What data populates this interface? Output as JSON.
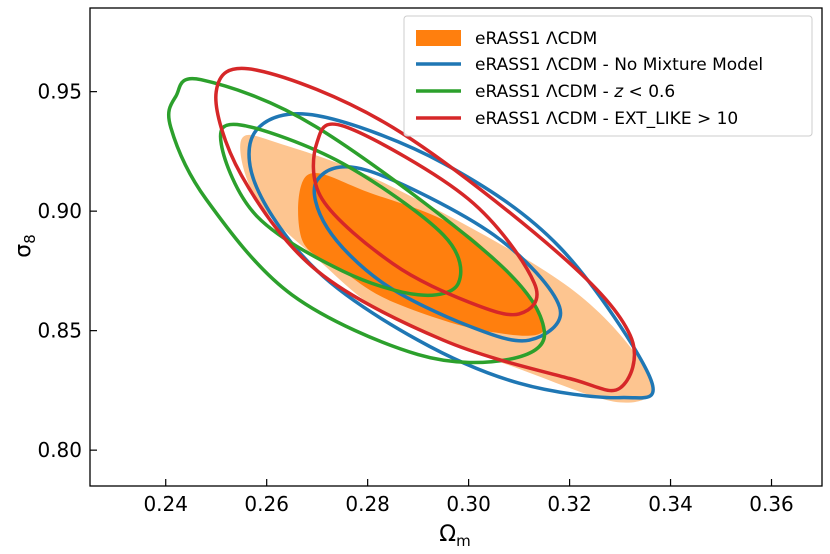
{
  "chart_data": {
    "type": "contour",
    "xlabel": "Ωm",
    "xlabel_main": "Ω",
    "xlabel_sub": "m",
    "ylabel": "σ8",
    "ylabel_main": "σ",
    "ylabel_sub": "8",
    "xlim": [
      0.225,
      0.37
    ],
    "ylim": [
      0.785,
      0.985
    ],
    "xticks": [
      0.24,
      0.26,
      0.28,
      0.3,
      0.32,
      0.34,
      0.36
    ],
    "xtick_labels": [
      "0.24",
      "0.26",
      "0.28",
      "0.30",
      "0.32",
      "0.34",
      "0.36"
    ],
    "yticks": [
      0.8,
      0.85,
      0.9,
      0.95
    ],
    "ytick_labels": [
      "0.80",
      "0.85",
      "0.90",
      "0.95"
    ],
    "grid": false,
    "legend_position": "top-right",
    "legend": [
      {
        "text": "eRASS1 ΛCDM",
        "color": "#ff7f0e",
        "style": "filled"
      },
      {
        "text": "eRASS1 ΛCDM - No Mixture Model",
        "color": "#1f77b4",
        "style": "line"
      },
      {
        "text": "eRASS1 ΛCDM - z < 0.6",
        "text_pre": "eRASS1 ΛCDM - ",
        "text_var": "z",
        "text_post": " < 0.6",
        "color": "#2ca02c",
        "style": "line"
      },
      {
        "text": "eRASS1 ΛCDM - EXT_LIKE > 10",
        "color": "#d62728",
        "style": "line"
      }
    ],
    "series": [
      {
        "name": "eRASS1 ΛCDM",
        "color": "#ff7f0e",
        "style": "filled",
        "contours": [
          {
            "level": "2σ",
            "color": "#fdc590",
            "points": [
              [
                0.255,
                0.93
              ],
              [
                0.263,
                0.928
              ],
              [
                0.285,
                0.91
              ],
              [
                0.32,
                0.868
              ],
              [
                0.336,
                0.83
              ],
              [
                0.33,
                0.82
              ],
              [
                0.31,
                0.834
              ],
              [
                0.285,
                0.855
              ],
              [
                0.27,
                0.88
              ],
              [
                0.258,
                0.905
              ]
            ]
          },
          {
            "level": "1σ",
            "color": "#ff7f0e",
            "points": [
              [
                0.268,
                0.915
              ],
              [
                0.28,
                0.908
              ],
              [
                0.3,
                0.89
              ],
              [
                0.315,
                0.852
              ],
              [
                0.303,
                0.85
              ],
              [
                0.285,
                0.862
              ],
              [
                0.275,
                0.875
              ],
              [
                0.267,
                0.888
              ]
            ]
          }
        ]
      },
      {
        "name": "eRASS1 ΛCDM - No Mixture Model",
        "color": "#1f77b4",
        "style": "line",
        "contours": [
          {
            "level": "2σ",
            "points": [
              [
                0.258,
                0.934
              ],
              [
                0.27,
                0.94
              ],
              [
                0.295,
                0.92
              ],
              [
                0.318,
                0.885
              ],
              [
                0.336,
                0.83
              ],
              [
                0.33,
                0.822
              ],
              [
                0.31,
                0.828
              ],
              [
                0.29,
                0.846
              ],
              [
                0.27,
                0.875
              ],
              [
                0.258,
                0.91
              ]
            ]
          },
          {
            "level": "1σ",
            "points": [
              [
                0.27,
                0.913
              ],
              [
                0.28,
                0.917
              ],
              [
                0.305,
                0.89
              ],
              [
                0.318,
                0.86
              ],
              [
                0.312,
                0.846
              ],
              [
                0.3,
                0.852
              ],
              [
                0.283,
                0.87
              ],
              [
                0.272,
                0.893
              ]
            ]
          }
        ]
      },
      {
        "name": "eRASS1 ΛCDM - z < 0.6",
        "color": "#2ca02c",
        "style": "line",
        "contours": [
          {
            "level": "2σ",
            "points": [
              [
                0.242,
                0.948
              ],
              [
                0.247,
                0.955
              ],
              [
                0.27,
                0.935
              ],
              [
                0.305,
                0.88
              ],
              [
                0.315,
                0.85
              ],
              [
                0.308,
                0.838
              ],
              [
                0.29,
                0.84
              ],
              [
                0.265,
                0.865
              ],
              [
                0.248,
                0.905
              ],
              [
                0.241,
                0.935
              ]
            ]
          },
          {
            "level": "1σ",
            "points": [
              [
                0.251,
                0.928
              ],
              [
                0.255,
                0.936
              ],
              [
                0.275,
                0.92
              ],
              [
                0.295,
                0.89
              ],
              [
                0.298,
                0.87
              ],
              [
                0.29,
                0.865
              ],
              [
                0.275,
                0.875
              ],
              [
                0.258,
                0.898
              ]
            ]
          }
        ]
      },
      {
        "name": "eRASS1 ΛCDM - EXT_LIKE > 10",
        "color": "#d62728",
        "style": "line",
        "contours": [
          {
            "level": "2σ",
            "points": [
              [
                0.25,
                0.95
              ],
              [
                0.258,
                0.959
              ],
              [
                0.285,
                0.935
              ],
              [
                0.318,
                0.882
              ],
              [
                0.332,
                0.848
              ],
              [
                0.33,
                0.826
              ],
              [
                0.32,
                0.83
              ],
              [
                0.295,
                0.846
              ],
              [
                0.27,
                0.875
              ],
              [
                0.255,
                0.915
              ]
            ]
          },
          {
            "level": "1σ",
            "points": [
              [
                0.27,
                0.929
              ],
              [
                0.276,
                0.935
              ],
              [
                0.3,
                0.905
              ],
              [
                0.313,
                0.87
              ],
              [
                0.31,
                0.857
              ],
              [
                0.3,
                0.862
              ],
              [
                0.285,
                0.878
              ],
              [
                0.271,
                0.905
              ]
            ]
          }
        ]
      }
    ]
  }
}
